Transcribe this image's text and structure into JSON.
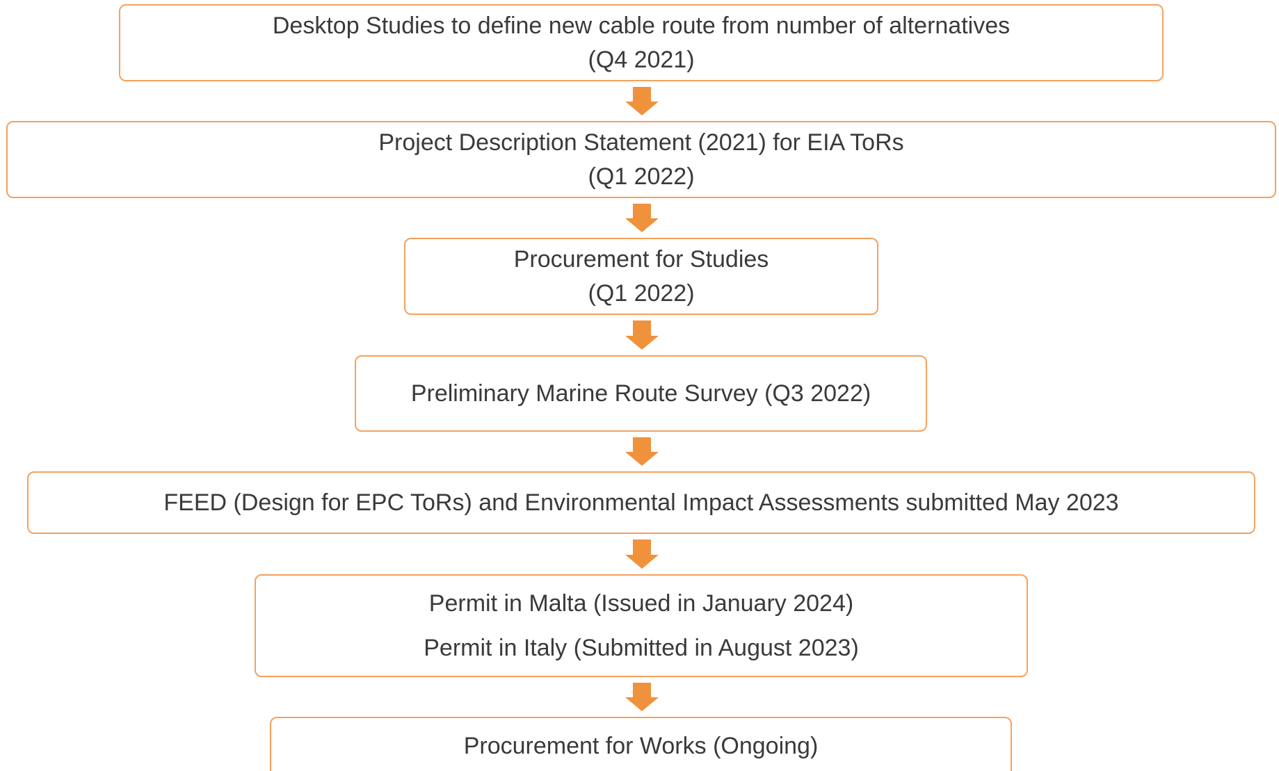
{
  "nodes": [
    {
      "lines": [
        "Desktop Studies to define new cable route from number of alternatives",
        "(Q4 2021)"
      ]
    },
    {
      "lines": [
        "Project Description Statement (2021) for EIA ToRs",
        "(Q1 2022)"
      ]
    },
    {
      "lines": [
        "Procurement for Studies",
        "(Q1 2022)"
      ]
    },
    {
      "lines": [
        "Preliminary Marine Route Survey (Q3 2022)"
      ]
    },
    {
      "lines": [
        "FEED (Design for EPC ToRs) and Environmental Impact Assessments submitted May 2023"
      ]
    },
    {
      "lines": [
        "Permit in Malta (Issued in January 2024)",
        "Permit in Italy (Submitted in August 2023)"
      ]
    },
    {
      "lines": [
        "Procurement for Works (Ongoing)"
      ]
    }
  ]
}
